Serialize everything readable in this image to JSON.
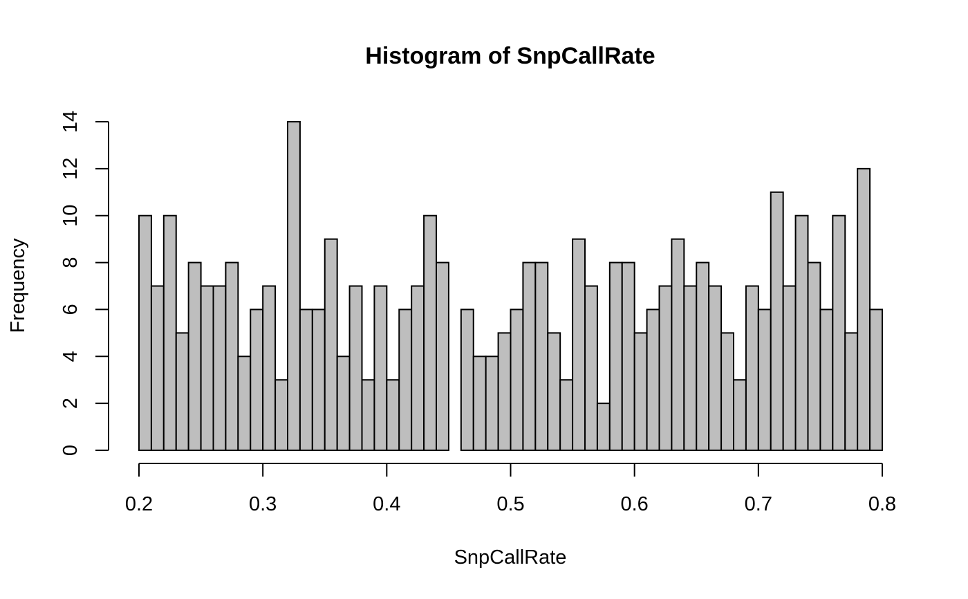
{
  "chart_data": {
    "type": "bar",
    "title": "Histogram of SnpCallRate",
    "xlabel": "SnpCallRate",
    "ylabel": "Frequency",
    "bin_width": 0.01,
    "bins_start": 0.2,
    "bins_end": 0.8,
    "values": [
      10,
      7,
      10,
      5,
      8,
      7,
      7,
      8,
      4,
      6,
      7,
      3,
      14,
      6,
      6,
      9,
      4,
      7,
      3,
      7,
      3,
      6,
      7,
      10,
      8,
      0,
      6,
      4,
      4,
      5,
      6,
      8,
      8,
      5,
      3,
      9,
      7,
      2,
      8,
      8,
      5,
      6,
      7,
      9,
      7,
      8,
      7,
      5,
      3,
      7,
      6,
      11,
      7,
      10,
      8,
      6,
      10,
      5,
      12,
      6
    ],
    "xlim": [
      0.2,
      0.8
    ],
    "ylim": [
      0,
      14
    ],
    "x_ticks": [
      0.2,
      0.3,
      0.4,
      0.5,
      0.6,
      0.7,
      0.8
    ],
    "x_tick_labels": [
      "0.2",
      "0.3",
      "0.4",
      "0.5",
      "0.6",
      "0.7",
      "0.8"
    ],
    "y_ticks": [
      0,
      2,
      4,
      6,
      8,
      10,
      12,
      14
    ],
    "y_tick_labels": [
      "0",
      "2",
      "4",
      "6",
      "8",
      "10",
      "12",
      "14"
    ],
    "grid": false,
    "bar_color": "#bebebe",
    "edge_color": "#000000"
  }
}
